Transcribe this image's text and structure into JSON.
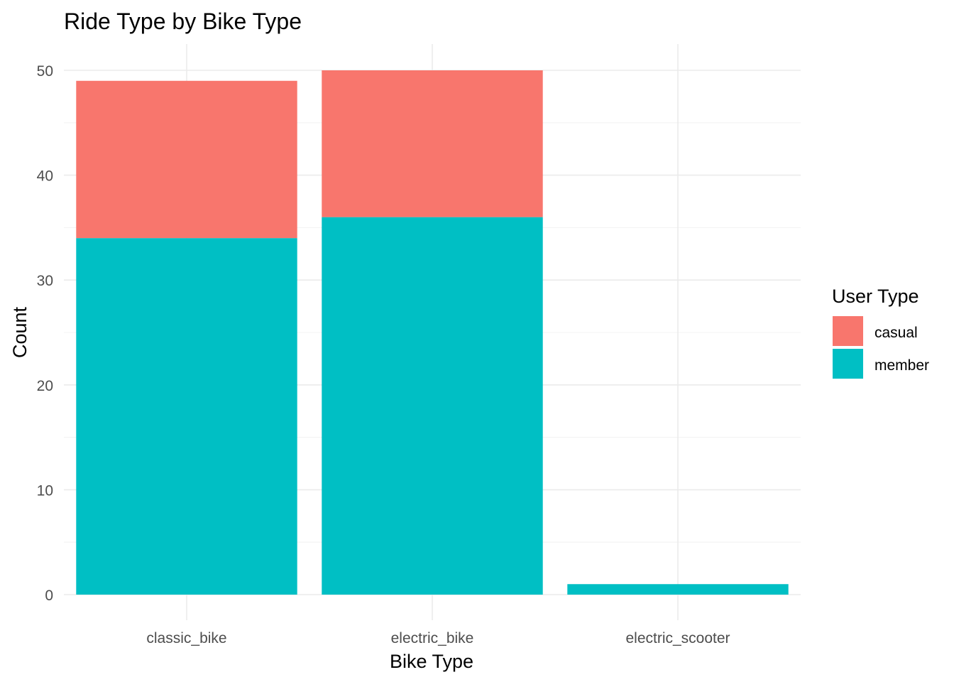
{
  "chart_data": {
    "type": "bar",
    "stacked": true,
    "title": "Ride Type by Bike Type",
    "xlabel": "Bike Type",
    "ylabel": "Count",
    "categories": [
      "classic_bike",
      "electric_bike",
      "electric_scooter"
    ],
    "series": [
      {
        "name": "member",
        "values": [
          34,
          36,
          1
        ],
        "color": "#00BFC4"
      },
      {
        "name": "casual",
        "values": [
          15,
          14,
          0
        ],
        "color": "#F8766D"
      }
    ],
    "ylim": [
      0,
      52
    ],
    "yticks": [
      0,
      10,
      20,
      30,
      40,
      50
    ],
    "grid": true,
    "legend": {
      "title": "User Type",
      "placement": "right",
      "entries": [
        {
          "label": "casual",
          "color": "#F8766D"
        },
        {
          "label": "member",
          "color": "#00BFC4"
        }
      ]
    }
  }
}
